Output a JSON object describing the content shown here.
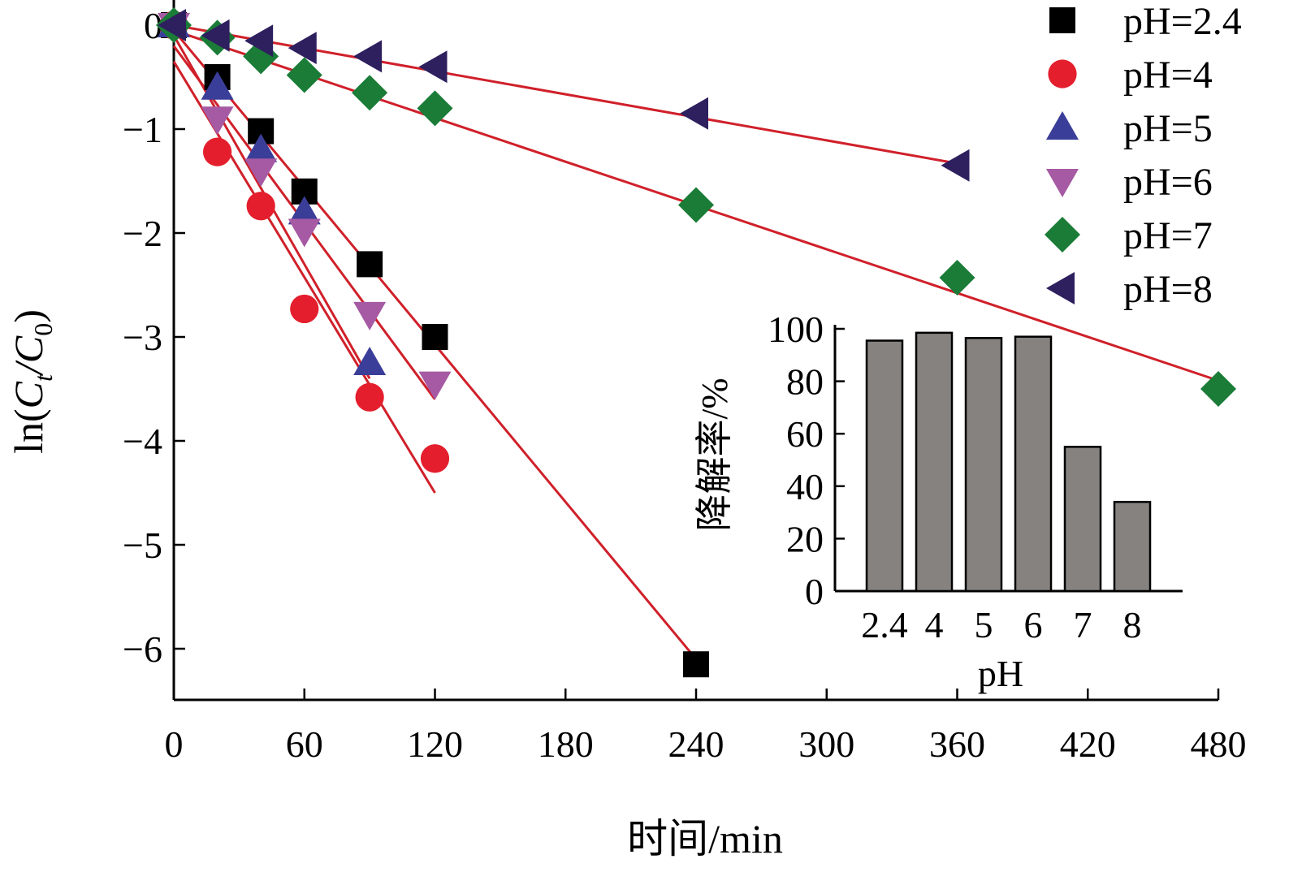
{
  "chart_data": [
    {
      "type": "scatter",
      "xlabel": "时间/min",
      "ylabel_parts": [
        "ln(",
        "C",
        "t",
        "/",
        "C",
        "0",
        ")"
      ],
      "xlim": [
        0,
        480
      ],
      "ylim": [
        -6.5,
        0
      ],
      "xticks": [
        0,
        60,
        120,
        180,
        240,
        300,
        360,
        420,
        480
      ],
      "yticks": [
        0,
        -1,
        -2,
        -3,
        -4,
        -5,
        -6
      ],
      "ytick_labels": [
        "0",
        "−1",
        "−2",
        "−3",
        "−4",
        "−5",
        "−6"
      ],
      "legend_position": "top-right",
      "fit_line_color": "#d0202a",
      "series": [
        {
          "name": "pH=2.4",
          "marker": "square",
          "color": "#000000",
          "x": [
            0,
            20,
            40,
            60,
            90,
            120,
            240
          ],
          "y": [
            0,
            -0.5,
            -1.02,
            -1.6,
            -2.3,
            -3.0,
            -6.15
          ],
          "fit": [
            [
              0,
              -0.05
            ],
            [
              240,
              -6.1
            ]
          ]
        },
        {
          "name": "pH=4",
          "marker": "circle",
          "color": "#e41e2c",
          "x": [
            0,
            20,
            40,
            60,
            90,
            120
          ],
          "y": [
            0,
            -1.22,
            -1.74,
            -2.73,
            -3.58,
            -4.17
          ],
          "fit": [
            [
              0,
              -0.35
            ],
            [
              120,
              -4.5
            ]
          ]
        },
        {
          "name": "pH=5",
          "marker": "triangle-up",
          "color": "#3b3e99",
          "x": [
            0,
            20,
            40,
            60,
            90
          ],
          "y": [
            0,
            -0.6,
            -1.2,
            -1.8,
            -3.25
          ],
          "fit": [
            [
              0,
              -0.1
            ],
            [
              90,
              -3.4
            ]
          ]
        },
        {
          "name": "pH=6",
          "marker": "triangle-down",
          "color": "#a65aa3",
          "x": [
            0,
            20,
            40,
            60,
            90,
            120
          ],
          "y": [
            0,
            -0.9,
            -1.4,
            -1.98,
            -2.78,
            -3.45
          ],
          "fit": [
            [
              0,
              -0.2
            ],
            [
              120,
              -3.6
            ]
          ]
        },
        {
          "name": "pH=7",
          "marker": "diamond",
          "color": "#1a7c37",
          "x": [
            0,
            20,
            40,
            60,
            90,
            120,
            240,
            360,
            480
          ],
          "y": [
            0,
            -0.12,
            -0.3,
            -0.48,
            -0.65,
            -0.8,
            -1.73,
            -2.43,
            -3.5
          ],
          "fit": [
            [
              0,
              -0.05
            ],
            [
              480,
              -3.42
            ]
          ]
        },
        {
          "name": "pH=8",
          "marker": "triangle-left",
          "color": "#2e1f5e",
          "x": [
            0,
            20,
            40,
            60,
            90,
            120,
            240,
            360
          ],
          "y": [
            0,
            -0.1,
            -0.15,
            -0.22,
            -0.3,
            -0.4,
            -0.85,
            -1.35
          ],
          "fit": [
            [
              0,
              0.0
            ],
            [
              360,
              -1.33
            ]
          ]
        }
      ]
    },
    {
      "type": "bar",
      "ylabel": "降解率/%",
      "xlabel": "pH",
      "categories": [
        "2.4",
        "4",
        "5",
        "6",
        "7",
        "8"
      ],
      "values": [
        95.5,
        98.5,
        96.5,
        97,
        55,
        34
      ],
      "ylim": [
        0,
        100
      ],
      "yticks": [
        0,
        20,
        40,
        60,
        80,
        100
      ],
      "bar_color": "#858280"
    }
  ]
}
